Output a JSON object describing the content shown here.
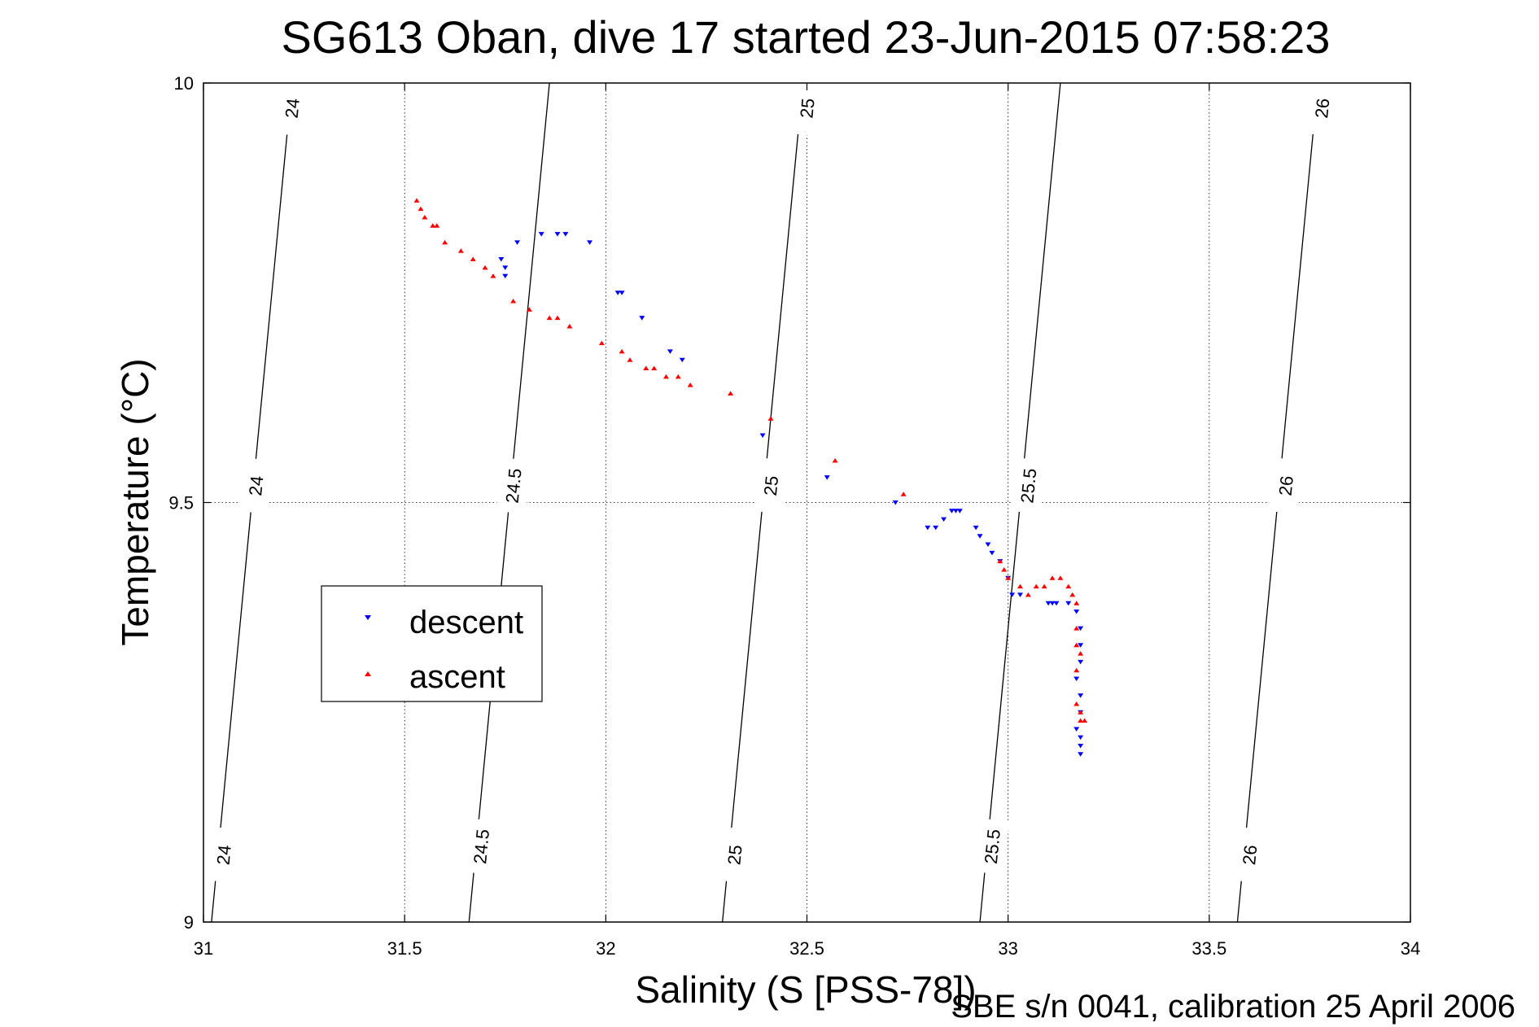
{
  "chart_data": {
    "type": "scatter",
    "title": "SG613 Oban, dive 17 started 23-Jun-2015 07:58:23",
    "xlabel": "Salinity (S [PSS-78])",
    "ylabel": "Temperature (°C)",
    "footnote": "SBE s/n 0041, calibration 25 April 2006",
    "xlim": [
      31,
      34
    ],
    "ylim": [
      9,
      10
    ],
    "xticks": [
      31,
      31.5,
      32,
      32.5,
      33,
      33.5,
      34
    ],
    "xtick_labels": [
      "31",
      "31.5",
      "32",
      "32.5",
      "33",
      "33.5",
      "34"
    ],
    "yticks": [
      9,
      9.5,
      10
    ],
    "ytick_labels": [
      "9",
      "9.5",
      "10"
    ],
    "grid": true,
    "legend_position": "left-center",
    "colors": {
      "descent": "#0000ff",
      "ascent": "#ff0000",
      "contour": "#000000"
    },
    "contours": [
      {
        "level": "24",
        "x_at_tmin": 31.02,
        "x_at_tmax": 31.22,
        "labels": [
          {
            "x": 31.05,
            "y": 9.08
          },
          {
            "x": 31.13,
            "y": 9.52
          },
          {
            "x": 31.22,
            "y": 9.97
          }
        ]
      },
      {
        "level": "24.5",
        "x_at_tmin": 31.66,
        "x_at_tmax": 31.86,
        "labels": [
          {
            "x": 31.69,
            "y": 9.09
          },
          {
            "x": 31.77,
            "y": 9.52
          }
        ]
      },
      {
        "level": "25",
        "x_at_tmin": 32.29,
        "x_at_tmax": 32.49,
        "labels": [
          {
            "x": 32.32,
            "y": 9.08
          },
          {
            "x": 32.41,
            "y": 9.52
          },
          {
            "x": 32.5,
            "y": 9.97
          }
        ]
      },
      {
        "level": "25.5",
        "x_at_tmin": 32.93,
        "x_at_tmax": 33.13,
        "labels": [
          {
            "x": 32.96,
            "y": 9.09
          },
          {
            "x": 33.05,
            "y": 9.52
          }
        ]
      },
      {
        "level": "26",
        "x_at_tmin": 33.57,
        "x_at_tmax": 33.77,
        "labels": [
          {
            "x": 33.6,
            "y": 9.08
          },
          {
            "x": 33.69,
            "y": 9.52
          },
          {
            "x": 33.78,
            "y": 9.97
          }
        ]
      }
    ],
    "series": [
      {
        "name": "descent",
        "marker": "triangle-down",
        "points": [
          [
            31.74,
            9.79
          ],
          [
            31.75,
            9.78
          ],
          [
            31.75,
            9.77
          ],
          [
            31.78,
            9.81
          ],
          [
            31.84,
            9.82
          ],
          [
            31.88,
            9.82
          ],
          [
            31.9,
            9.82
          ],
          [
            31.96,
            9.81
          ],
          [
            32.03,
            9.75
          ],
          [
            32.04,
            9.75
          ],
          [
            32.09,
            9.72
          ],
          [
            32.16,
            9.68
          ],
          [
            32.19,
            9.67
          ],
          [
            32.39,
            9.58
          ],
          [
            32.55,
            9.53
          ],
          [
            32.72,
            9.5
          ],
          [
            32.8,
            9.47
          ],
          [
            32.82,
            9.47
          ],
          [
            32.84,
            9.48
          ],
          [
            32.86,
            9.49
          ],
          [
            32.87,
            9.49
          ],
          [
            32.88,
            9.49
          ],
          [
            32.92,
            9.47
          ],
          [
            32.93,
            9.46
          ],
          [
            32.95,
            9.45
          ],
          [
            32.96,
            9.44
          ],
          [
            32.98,
            9.43
          ],
          [
            33.0,
            9.41
          ],
          [
            33.01,
            9.39
          ],
          [
            33.03,
            9.39
          ],
          [
            33.1,
            9.38
          ],
          [
            33.11,
            9.38
          ],
          [
            33.12,
            9.38
          ],
          [
            33.15,
            9.38
          ],
          [
            33.17,
            9.37
          ],
          [
            33.18,
            9.35
          ],
          [
            33.18,
            9.33
          ],
          [
            33.18,
            9.31
          ],
          [
            33.17,
            9.29
          ],
          [
            33.18,
            9.27
          ],
          [
            33.18,
            9.25
          ],
          [
            33.17,
            9.23
          ],
          [
            33.18,
            9.22
          ],
          [
            33.18,
            9.21
          ],
          [
            33.18,
            9.2
          ]
        ]
      },
      {
        "name": "ascent",
        "marker": "triangle-up",
        "points": [
          [
            31.53,
            9.86
          ],
          [
            31.54,
            9.85
          ],
          [
            31.55,
            9.84
          ],
          [
            31.57,
            9.83
          ],
          [
            31.58,
            9.83
          ],
          [
            31.6,
            9.81
          ],
          [
            31.64,
            9.8
          ],
          [
            31.67,
            9.79
          ],
          [
            31.7,
            9.78
          ],
          [
            31.72,
            9.77
          ],
          [
            31.77,
            9.74
          ],
          [
            31.81,
            9.73
          ],
          [
            31.86,
            9.72
          ],
          [
            31.88,
            9.72
          ],
          [
            31.91,
            9.71
          ],
          [
            31.99,
            9.69
          ],
          [
            32.04,
            9.68
          ],
          [
            32.06,
            9.67
          ],
          [
            32.1,
            9.66
          ],
          [
            32.12,
            9.66
          ],
          [
            32.15,
            9.65
          ],
          [
            32.18,
            9.65
          ],
          [
            32.21,
            9.64
          ],
          [
            32.31,
            9.63
          ],
          [
            32.41,
            9.6
          ],
          [
            32.57,
            9.55
          ],
          [
            32.74,
            9.51
          ],
          [
            32.98,
            9.43
          ],
          [
            32.99,
            9.42
          ],
          [
            33.0,
            9.41
          ],
          [
            33.03,
            9.4
          ],
          [
            33.05,
            9.39
          ],
          [
            33.07,
            9.4
          ],
          [
            33.09,
            9.4
          ],
          [
            33.11,
            9.41
          ],
          [
            33.13,
            9.41
          ],
          [
            33.15,
            9.4
          ],
          [
            33.16,
            9.39
          ],
          [
            33.17,
            9.38
          ],
          [
            33.17,
            9.35
          ],
          [
            33.17,
            9.33
          ],
          [
            33.18,
            9.32
          ],
          [
            33.17,
            9.3
          ],
          [
            33.17,
            9.26
          ],
          [
            33.18,
            9.25
          ],
          [
            33.18,
            9.24
          ],
          [
            33.19,
            9.24
          ]
        ]
      }
    ]
  }
}
